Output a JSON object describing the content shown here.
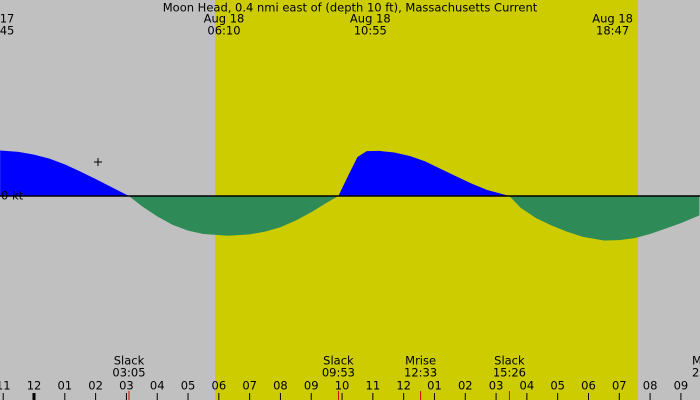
{
  "chart_data": {
    "type": "area",
    "title": "Moon Head, 0.4 nmi east of (depth 10 ft), Massachusetts Current",
    "y_label": "0 kt",
    "xlim": [
      -1.104,
      21.62
    ],
    "ylim": [
      -2.8,
      2.8
    ],
    "positive_color": "#0000ff",
    "negative_color": "#2e8b57",
    "x": [
      -1.1,
      -0.5,
      0,
      0.5,
      1,
      1.5,
      2,
      2.5,
      3.08,
      3.5,
      4,
      4.5,
      5,
      5.5,
      6.3,
      7,
      7.5,
      8,
      8.5,
      9,
      9.5,
      9.88,
      10.2,
      10.5,
      10.8,
      11.2,
      11.7,
      12.2,
      12.7,
      13.2,
      13.7,
      14.2,
      14.7,
      15.43,
      15.8,
      16.3,
      16.8,
      17.3,
      17.8,
      18.5,
      19,
      19.5,
      20,
      20.5,
      21,
      21.6
    ],
    "values": [
      1.34,
      1.3,
      1.22,
      1.1,
      0.93,
      0.72,
      0.5,
      0.27,
      0,
      -0.3,
      -0.6,
      -0.85,
      -1.02,
      -1.12,
      -1.17,
      -1.13,
      -1.05,
      -0.92,
      -0.72,
      -0.48,
      -0.2,
      0,
      0.6,
      1.15,
      1.32,
      1.33,
      1.28,
      1.18,
      1.02,
      0.8,
      0.58,
      0.37,
      0.18,
      0,
      -0.35,
      -0.65,
      -0.87,
      -1.05,
      -1.2,
      -1.31,
      -1.3,
      -1.24,
      -1.12,
      -0.96,
      -0.8,
      -0.57
    ],
    "xticks": [
      {
        "value": -1,
        "label": "11"
      },
      {
        "value": 0,
        "label": "12"
      },
      {
        "value": 1,
        "label": "01"
      },
      {
        "value": 2,
        "label": "02"
      },
      {
        "value": 3,
        "label": "03"
      },
      {
        "value": 4,
        "label": "04"
      },
      {
        "value": 5,
        "label": "05"
      },
      {
        "value": 6,
        "label": "06"
      },
      {
        "value": 7,
        "label": "07"
      },
      {
        "value": 8,
        "label": "08"
      },
      {
        "value": 9,
        "label": "09"
      },
      {
        "value": 10,
        "label": "10"
      },
      {
        "value": 11,
        "label": "11"
      },
      {
        "value": 12,
        "label": "12"
      },
      {
        "value": 13,
        "label": "01"
      },
      {
        "value": 14,
        "label": "02"
      },
      {
        "value": 15,
        "label": "03"
      },
      {
        "value": 16,
        "label": "04"
      },
      {
        "value": 17,
        "label": "05"
      },
      {
        "value": 18,
        "label": "06"
      },
      {
        "value": 19,
        "label": "07"
      },
      {
        "value": 20,
        "label": "08"
      },
      {
        "value": 21,
        "label": "09"
      }
    ],
    "top_labels": [
      {
        "date": "17",
        "time": "45"
      },
      {
        "date": "Aug 18",
        "time": "06:10",
        "x": 6.167
      },
      {
        "date": "Aug 18",
        "time": "10:55",
        "x": 10.917
      },
      {
        "date": "Aug 18",
        "time": "18:47",
        "x": 18.783
      }
    ],
    "events": [
      {
        "name": "Slack",
        "time": "03:05",
        "x": 3.083
      },
      {
        "name": "Slack",
        "time": "09:53",
        "x": 9.883
      },
      {
        "name": "Mrise",
        "time": "12:33",
        "x": 12.55
      },
      {
        "name": "Slack",
        "time": "15:26",
        "x": 15.433
      },
      {
        "name": "M",
        "time": "2"
      }
    ]
  }
}
